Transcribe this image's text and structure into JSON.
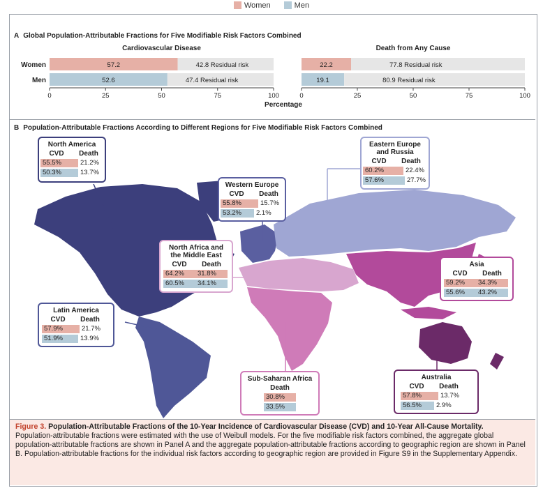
{
  "legend": [
    {
      "label": "Women",
      "color": "#e6b0a6"
    },
    {
      "label": "Men",
      "color": "#b4cbd8"
    }
  ],
  "panel_a": {
    "letter": "A",
    "title": "Global Population-Attributable Fractions for Five Modifiable Risk Factors Combined",
    "xlabel": "Percentage"
  },
  "panel_b": {
    "letter": "B",
    "title": "Population-Attributable Fractions According to Different Regions for Five Modifiable Risk Factors Combined",
    "col_cvd": "CVD",
    "col_death": "Death"
  },
  "chart_data": [
    {
      "type": "bar",
      "title": "Cardiovascular Disease",
      "categories": [
        "Women",
        "Men"
      ],
      "series": [
        {
          "values": [
            57.2,
            52.6
          ]
        },
        {
          "name": "Residual risk",
          "values": [
            42.8,
            47.4
          ]
        }
      ],
      "labels": [
        "57.2",
        "52.6"
      ],
      "residual_labels": [
        "42.8 Residual risk",
        "47.4 Residual risk"
      ],
      "xlim": [
        0,
        100
      ],
      "xticks": [
        "0",
        "25",
        "50",
        "75",
        "100"
      ]
    },
    {
      "type": "bar",
      "title": "Death from Any Cause",
      "categories": [
        "Women",
        "Men"
      ],
      "series": [
        {
          "values": [
            22.2,
            19.1
          ]
        },
        {
          "name": "Residual risk",
          "values": [
            77.8,
            80.9
          ]
        }
      ],
      "labels": [
        "22.2",
        "19.1"
      ],
      "residual_labels": [
        "77.8 Residual risk",
        "80.9 Residual risk"
      ],
      "xlim": [
        0,
        100
      ],
      "xticks": [
        "0",
        "25",
        "50",
        "75",
        "100"
      ]
    },
    {
      "type": "table",
      "regions": [
        {
          "name": "North America",
          "cvd_women": "55.5%",
          "death_women": "21.2%",
          "cvd_men": "50.3%",
          "death_men": "13.7%",
          "color": "#3c3f7c"
        },
        {
          "name": "Eastern Europe and Russia",
          "cvd_women": "60.2%",
          "death_women": "22.4%",
          "cvd_men": "57.6%",
          "death_men": "27.7%",
          "color": "#9fa6d3"
        },
        {
          "name": "Western Europe",
          "cvd_women": "55.8%",
          "death_women": "15.7%",
          "cvd_men": "53.2%",
          "death_men": "2.1%",
          "color": "#5a5fa0"
        },
        {
          "name": "North Africa and the Middle East",
          "cvd_women": "64.2%",
          "death_women": "31.8%",
          "cvd_men": "60.5%",
          "death_men": "34.1%",
          "color": "#d8a6cf"
        },
        {
          "name": "Asia",
          "cvd_women": "59.2%",
          "death_women": "34.3%",
          "cvd_men": "55.6%",
          "death_men": "43.2%",
          "color": "#b24a9b"
        },
        {
          "name": "Latin America",
          "cvd_women": "57.9%",
          "death_women": "21.7%",
          "cvd_men": "51.9%",
          "death_men": "13.9%",
          "color": "#4f5797"
        },
        {
          "name": "Sub-Saharan Africa",
          "death_women": "30.8%",
          "death_men": "33.5%",
          "color": "#cf7bb8"
        },
        {
          "name": "Australia",
          "cvd_women": "57.8%",
          "death_women": "13.7%",
          "cvd_men": "56.5%",
          "death_men": "2.9%",
          "color": "#6b2a68"
        }
      ]
    }
  ],
  "caption": {
    "figure": "Figure 3.",
    "title": "Population-Attributable Fractions of the 10-Year Incidence of Cardiovascular Disease (CVD) and 10-Year All-Cause Mortality.",
    "text": "Population-attributable fractions were estimated with the use of Weibull models. For the five modifiable risk factors combined, the aggregate global population-attributable fractions are shown in Panel A and the aggregate population-attributable fractions according to geographic region are shown in Panel B. Population-attributable fractions for the individual risk factors according to geographic region are provided in Figure S9 in the Supplementary Appendix."
  }
}
